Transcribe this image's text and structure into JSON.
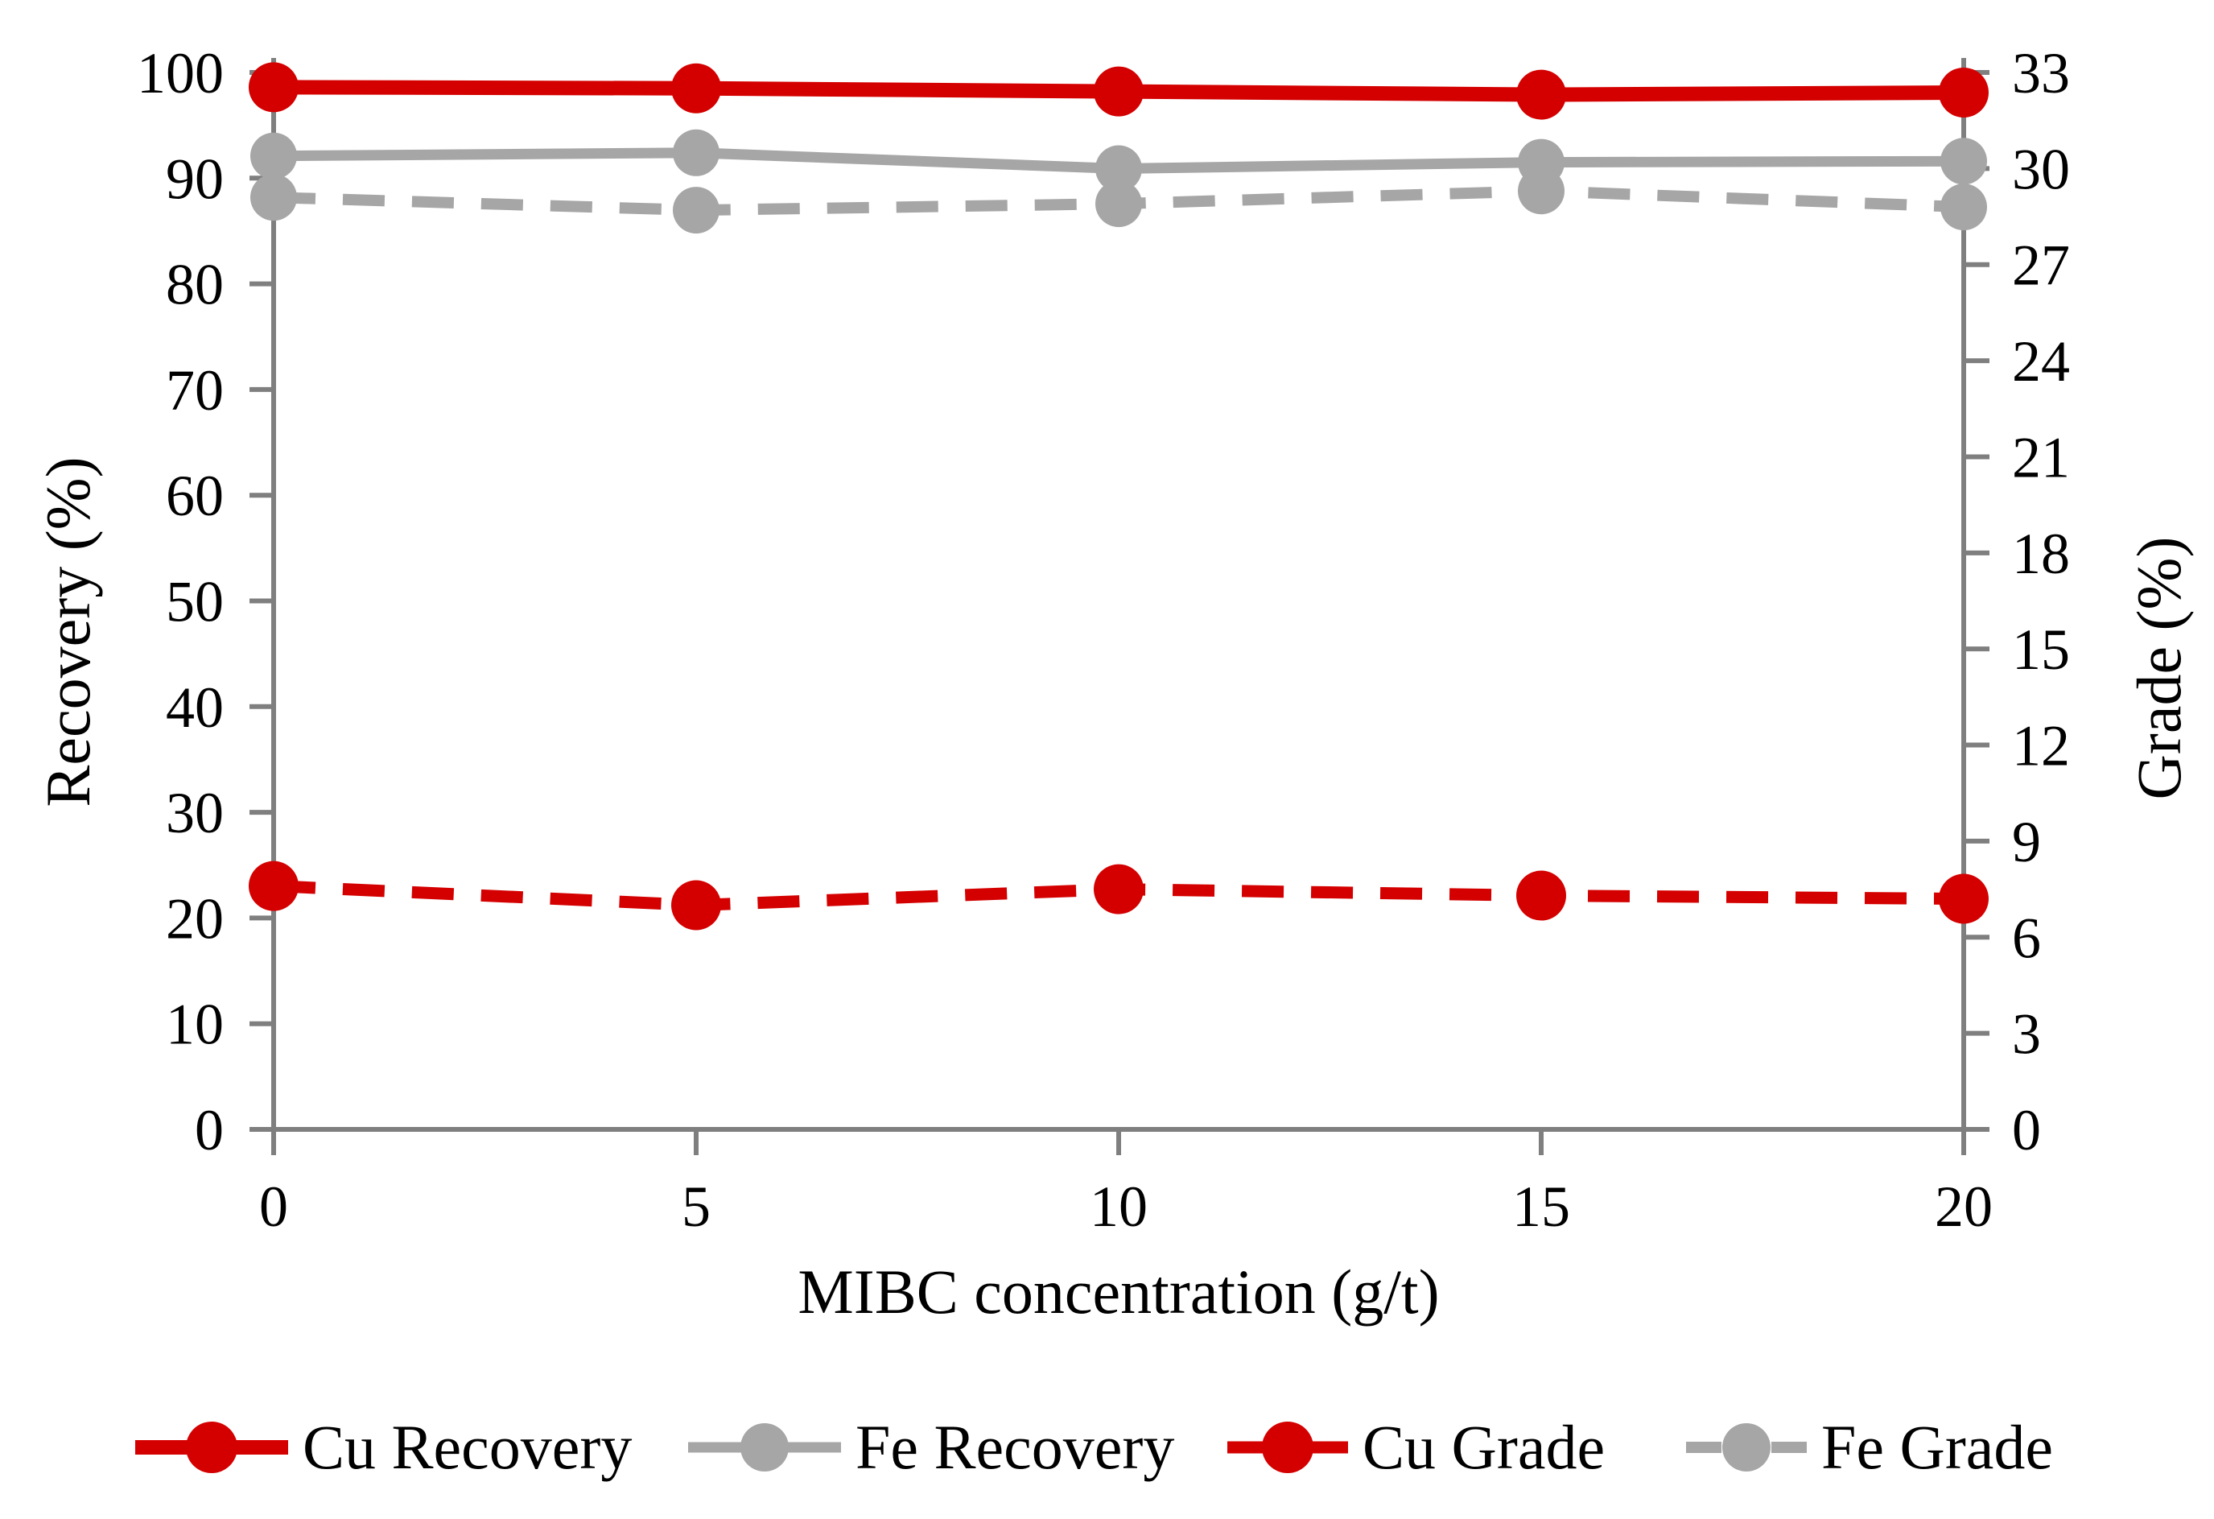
{
  "chart_data": {
    "type": "line",
    "title": "",
    "xlabel": "MIBC concentration (g/t)",
    "ylabel_left": "Recovery (%)",
    "ylabel_right": "Grade (%)",
    "x": [
      0,
      5,
      10,
      15,
      20
    ],
    "x_ticks": [
      0,
      5,
      10,
      15,
      20
    ],
    "left_axis": {
      "label": "Recovery (%)",
      "min": 0,
      "max": 100,
      "ticks": [
        0,
        10,
        20,
        30,
        40,
        50,
        60,
        70,
        80,
        90,
        100
      ]
    },
    "right_axis": {
      "label": "Grade (%)",
      "min": 0,
      "max": 33,
      "ticks": [
        0,
        3,
        6,
        9,
        12,
        15,
        18,
        21,
        24,
        27,
        30,
        33
      ]
    },
    "grid": false,
    "legend_position": "bottom",
    "axis_color": "#7f7f7f",
    "background_color": "#ffffff",
    "series": [
      {
        "name": "Cu Recovery",
        "axis": "left",
        "style": "solid",
        "color": "#d40000",
        "marker": "circle",
        "values": [
          98.6,
          98.5,
          98.2,
          97.9,
          98.1
        ]
      },
      {
        "name": "Fe Recovery",
        "axis": "left",
        "style": "solid",
        "color": "#a6a6a6",
        "marker": "circle",
        "values": [
          92.1,
          92.4,
          90.9,
          91.5,
          91.6
        ]
      },
      {
        "name": "Cu Grade",
        "axis": "right",
        "style": "dashed",
        "color": "#d40000",
        "marker": "circle",
        "values": [
          7.6,
          7.0,
          7.5,
          7.3,
          7.2
        ]
      },
      {
        "name": "Fe Grade",
        "axis": "right",
        "style": "dashed",
        "color": "#a6a6a6",
        "marker": "circle",
        "values": [
          29.1,
          28.7,
          28.9,
          29.3,
          28.8
        ]
      }
    ]
  }
}
